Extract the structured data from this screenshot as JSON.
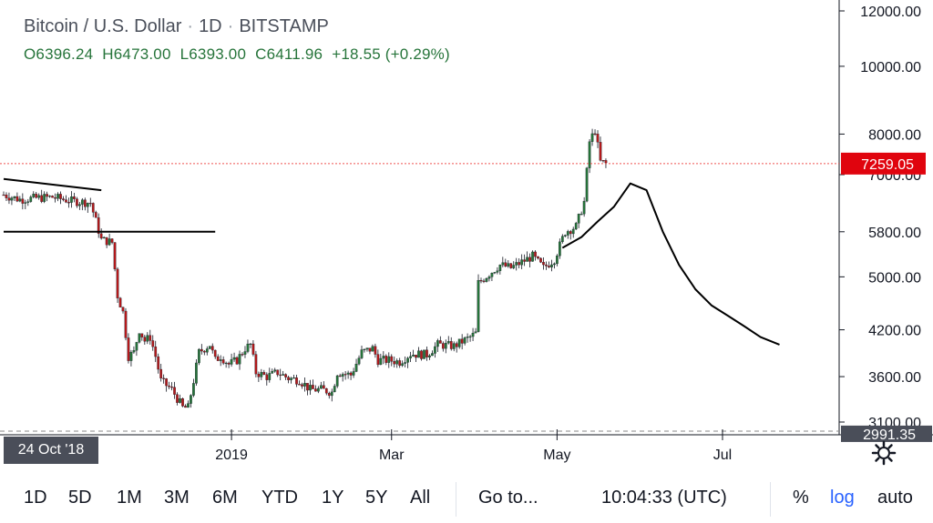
{
  "legend": {
    "symbol": "Bitcoin / U.S. Dollar",
    "interval": "1D",
    "exchange": "BITSTAMP",
    "open": "O6396.24",
    "high": "H6473.00",
    "low": "L6393.00",
    "close": "C6411.96",
    "change": "+18.55 (+0.29%)"
  },
  "price_axis": {
    "labels": [
      "12000.00",
      "10000.00",
      "8000.00",
      "7000.00",
      "5800.00",
      "5000.00",
      "4200.00",
      "3600.00",
      "3100.00"
    ],
    "current_price_label": "7259.05",
    "bottom_label": "2991.35"
  },
  "time_axis": {
    "labels": [
      "2019",
      "Mar",
      "May",
      "Jul"
    ],
    "cursor_date": "24 Oct '18"
  },
  "toolbar": {
    "ranges": [
      "1D",
      "5D",
      "1M",
      "3M",
      "6M",
      "YTD",
      "1Y",
      "5Y",
      "All"
    ],
    "goto_label": "Go to...",
    "clock": "10:04:33 (UTC)",
    "percent_label": "%",
    "log_label": "log",
    "auto_label": "auto"
  },
  "colors": {
    "up": "#26743a",
    "down": "#b3191b",
    "price_line": "#ef5350",
    "current_price_bg": "#e0040e",
    "drawing": "#000000",
    "log_active": "#2962ff"
  },
  "icons": {
    "settings": "gear-icon"
  },
  "chart_data": {
    "type": "candlestick",
    "title": "Bitcoin / U.S. Dollar",
    "scale": "log",
    "ylim": [
      2950,
      12500
    ],
    "x_start": "2018-10-09",
    "x_end": "2019-08-13",
    "price_line": 7259.05,
    "candles_close_path": [
      [
        "2018-10-09",
        6550
      ],
      [
        "2018-10-15",
        6450
      ],
      [
        "2018-10-21",
        6480
      ],
      [
        "2018-10-27",
        6500
      ],
      [
        "2018-11-03",
        6420
      ],
      [
        "2018-11-10",
        6380
      ],
      [
        "2018-11-14",
        5650
      ],
      [
        "2018-11-18",
        5600
      ],
      [
        "2018-11-20",
        4700
      ],
      [
        "2018-11-22",
        4450
      ],
      [
        "2018-11-24",
        3850
      ],
      [
        "2018-11-26",
        3900
      ],
      [
        "2018-11-28",
        4200
      ],
      [
        "2018-11-30",
        4050
      ],
      [
        "2018-12-02",
        4100
      ],
      [
        "2018-12-04",
        3850
      ],
      [
        "2018-12-06",
        3550
      ],
      [
        "2018-12-08",
        3500
      ],
      [
        "2018-12-10",
        3450
      ],
      [
        "2018-12-12",
        3350
      ],
      [
        "2018-12-14",
        3250
      ],
      [
        "2018-12-16",
        3250
      ],
      [
        "2018-12-18",
        3550
      ],
      [
        "2018-12-20",
        3900
      ],
      [
        "2018-12-22",
        3950
      ],
      [
        "2018-12-24",
        4000
      ],
      [
        "2018-12-26",
        3800
      ],
      [
        "2018-12-28",
        3850
      ],
      [
        "2018-12-31",
        3750
      ],
      [
        "2019-01-03",
        3800
      ],
      [
        "2019-01-06",
        3950
      ],
      [
        "2019-01-08",
        4000
      ],
      [
        "2019-01-10",
        3650
      ],
      [
        "2019-01-14",
        3600
      ],
      [
        "2019-01-18",
        3650
      ],
      [
        "2019-01-22",
        3580
      ],
      [
        "2019-01-26",
        3560
      ],
      [
        "2019-01-30",
        3450
      ],
      [
        "2019-02-03",
        3450
      ],
      [
        "2019-02-07",
        3420
      ],
      [
        "2019-02-09",
        3650
      ],
      [
        "2019-02-14",
        3620
      ],
      [
        "2019-02-18",
        3900
      ],
      [
        "2019-02-22",
        3950
      ],
      [
        "2019-02-24",
        3800
      ],
      [
        "2019-02-28",
        3800
      ],
      [
        "2019-03-04",
        3780
      ],
      [
        "2019-03-08",
        3880
      ],
      [
        "2019-03-14",
        3870
      ],
      [
        "2019-03-18",
        4000
      ],
      [
        "2019-03-24",
        3980
      ],
      [
        "2019-03-30",
        4100
      ],
      [
        "2019-04-01",
        4150
      ],
      [
        "2019-04-02",
        4900
      ],
      [
        "2019-04-06",
        5050
      ],
      [
        "2019-04-10",
        5200
      ],
      [
        "2019-04-14",
        5150
      ],
      [
        "2019-04-18",
        5250
      ],
      [
        "2019-04-22",
        5350
      ],
      [
        "2019-04-26",
        5150
      ],
      [
        "2019-04-30",
        5300
      ],
      [
        "2019-05-04",
        5800
      ],
      [
        "2019-05-08",
        5900
      ],
      [
        "2019-05-11",
        6400
      ],
      [
        "2019-05-13",
        7800
      ],
      [
        "2019-05-15",
        8100
      ],
      [
        "2019-05-17",
        7300
      ],
      [
        "2019-05-19",
        7260
      ]
    ],
    "drawings": [
      {
        "name": "trendline-1",
        "points": [
          [
            "2018-10-09",
            6900
          ],
          [
            "2018-11-14",
            6650
          ]
        ]
      },
      {
        "name": "horizontal-line",
        "points": [
          [
            "2018-10-09",
            5800
          ],
          [
            "2018-12-26",
            5800
          ]
        ]
      },
      {
        "name": "projection-curve",
        "points": [
          [
            "2019-05-03",
            5500
          ],
          [
            "2019-05-10",
            5700
          ],
          [
            "2019-05-16",
            6000
          ],
          [
            "2019-05-22",
            6300
          ],
          [
            "2019-05-28",
            6800
          ],
          [
            "2019-06-03",
            6650
          ],
          [
            "2019-06-09",
            5800
          ],
          [
            "2019-06-15",
            5200
          ],
          [
            "2019-06-21",
            4800
          ],
          [
            "2019-06-27",
            4550
          ],
          [
            "2019-07-03",
            4400
          ],
          [
            "2019-07-09",
            4250
          ],
          [
            "2019-07-15",
            4100
          ],
          [
            "2019-07-22",
            4000
          ]
        ]
      }
    ]
  }
}
